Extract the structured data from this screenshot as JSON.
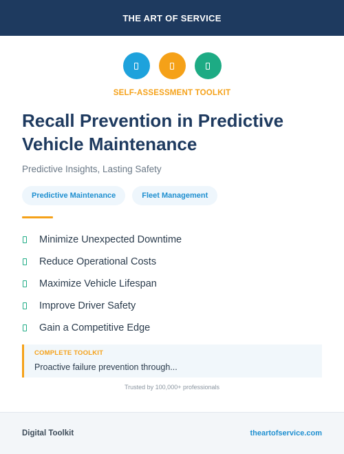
{
  "header": {
    "brand": "THE ART OF SERVICE"
  },
  "icons": [
    {
      "name": "document-icon",
      "color": "#1ea2dc"
    },
    {
      "name": "document-icon",
      "color": "#f5a118"
    },
    {
      "name": "document-icon",
      "color": "#1dab84"
    }
  ],
  "kicker": "SELF-ASSESSMENT TOOLKIT",
  "title": "Recall Prevention in Predictive Vehicle Maintenance",
  "subtitle": "Predictive Insights, Lasting Safety",
  "tags": [
    "Predictive Maintenance",
    "Fleet Management"
  ],
  "benefits": [
    "Minimize Unexpected Downtime",
    "Reduce Operational Costs",
    "Maximize Vehicle Lifespan",
    "Improve Driver Safety",
    "Gain a Competitive Edge"
  ],
  "callout": {
    "label": "COMPLETE TOOLKIT",
    "text": "Proactive failure prevention through..."
  },
  "trusted": "Trusted by 100,000+ professionals",
  "footer": {
    "left": "Digital Toolkit",
    "right": "theartofservice.com"
  },
  "colors": {
    "navy": "#1e3a5f",
    "accent_orange": "#f5a118",
    "accent_blue": "#1ea2dc",
    "accent_green": "#1dab84"
  }
}
